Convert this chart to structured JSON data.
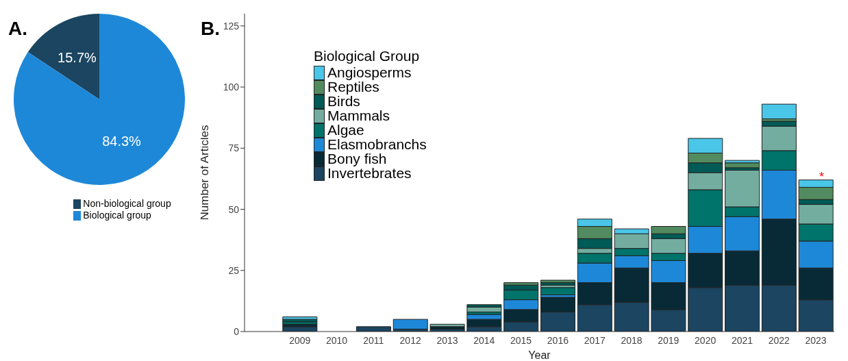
{
  "chart_data": [
    {
      "type": "pie",
      "title": "A.",
      "categories": [
        "Non-biological group",
        "Biological group"
      ],
      "values": [
        15.7,
        84.3
      ],
      "colors": [
        "#1b4560",
        "#1e88d8"
      ],
      "value_labels": [
        "15.7%",
        "84.3%"
      ],
      "legend": "bottom"
    },
    {
      "type": "bar",
      "title": "B.",
      "xlabel": "Year",
      "ylabel": "Number of Articles",
      "legend_title": "Biological Group",
      "categories": [
        null,
        "2009",
        "2010",
        "2011",
        "2012",
        "2013",
        "2014",
        "2015",
        "2016",
        "2017",
        "2018",
        "2019",
        "2020",
        "2021",
        "2022",
        "2023"
      ],
      "stacked": true,
      "series": [
        {
          "name": "Invertebrates",
          "color": "#1b4560",
          "values": [
            null,
            2,
            0,
            2,
            1,
            1,
            2,
            4,
            8,
            11,
            12,
            9,
            18,
            19,
            19,
            13
          ]
        },
        {
          "name": "Bony fish",
          "color": "#082a36",
          "values": [
            null,
            1,
            0,
            0,
            0,
            1,
            3,
            5,
            6,
            9,
            14,
            11,
            14,
            14,
            27,
            13
          ]
        },
        {
          "name": "Elasmobranchs",
          "color": "#1e88d8",
          "values": [
            null,
            0,
            0,
            0,
            4,
            0,
            2,
            4,
            1,
            8,
            5,
            9,
            11,
            14,
            20,
            11
          ]
        },
        {
          "name": "Algae",
          "color": "#00736a",
          "values": [
            null,
            1,
            0,
            0,
            0,
            0,
            1,
            4,
            3,
            4,
            3,
            3,
            15,
            4,
            8,
            7
          ]
        },
        {
          "name": "Mammals",
          "color": "#72ada0",
          "values": [
            null,
            0,
            0,
            0,
            0,
            1,
            2,
            0,
            1,
            2,
            6,
            6,
            7,
            15,
            10,
            8
          ]
        },
        {
          "name": "Birds",
          "color": "#005a55",
          "values": [
            null,
            1,
            0,
            0,
            0,
            0,
            1,
            2,
            1,
            4,
            0,
            2,
            4,
            1,
            2,
            2
          ]
        },
        {
          "name": "Reptiles",
          "color": "#518b5f",
          "values": [
            null,
            0,
            0,
            0,
            0,
            0,
            0,
            1,
            1,
            5,
            0,
            3,
            4,
            2,
            1,
            5
          ]
        },
        {
          "name": "Angiosperms",
          "color": "#4ac6e8",
          "values": [
            null,
            1,
            0,
            0,
            0,
            0,
            0,
            0,
            0,
            3,
            2,
            0,
            6,
            1,
            6,
            3
          ]
        }
      ],
      "ylim": [
        0,
        130
      ],
      "yticks": [
        0,
        25,
        50,
        75,
        100,
        125
      ],
      "annotations": [
        "*"
      ],
      "grid": false,
      "legend": "top left"
    }
  ]
}
